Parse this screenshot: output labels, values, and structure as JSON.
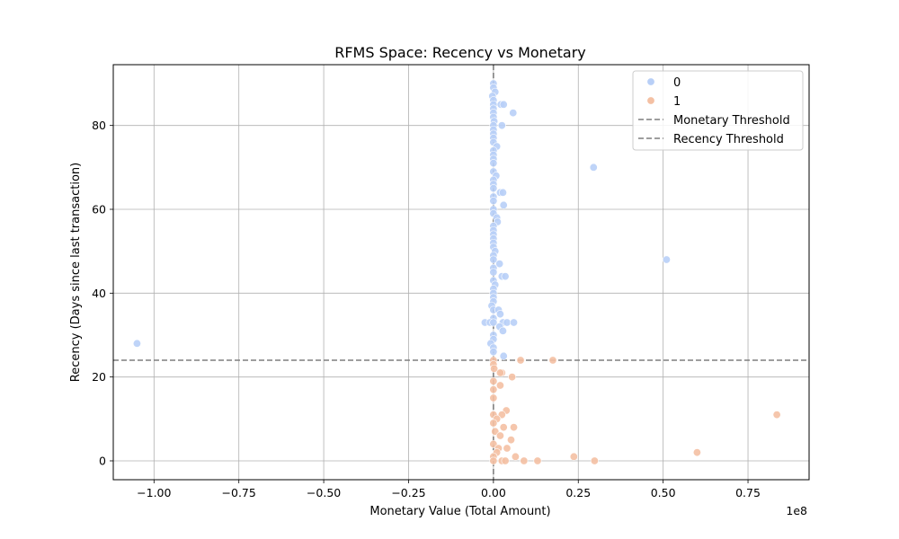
{
  "chart_data": {
    "type": "scatter",
    "title": "RFMS Space: Recency vs Monetary",
    "xlabel": "Monetary Value (Total Amount)",
    "ylabel": "Recency (Days since last transaction)",
    "x_offset_label": "1e8",
    "xlim": [
      -1.12,
      0.93
    ],
    "ylim": [
      -4.5,
      94.5
    ],
    "x_scale_multiplier": 100000000,
    "xticks": [
      -1.0,
      -0.75,
      -0.5,
      -0.25,
      0.0,
      0.25,
      0.5,
      0.75
    ],
    "xtick_labels": [
      "−1.00",
      "−0.75",
      "−0.50",
      "−0.25",
      "0.00",
      "0.25",
      "0.50",
      "0.75"
    ],
    "yticks": [
      0,
      20,
      40,
      60,
      80
    ],
    "ytick_labels": [
      "0",
      "20",
      "40",
      "60",
      "80"
    ],
    "grid": true,
    "legend_position": "top-right",
    "thresholds": {
      "monetary": {
        "label": "Monetary Threshold",
        "x": 0.0
      },
      "recency": {
        "label": "Recency Threshold",
        "y": 24
      }
    },
    "series": [
      {
        "name": "0",
        "color": "#b8cff7",
        "points": [
          [
            0.0,
            90
          ],
          [
            0.0,
            89
          ],
          [
            0.005,
            88
          ],
          [
            -0.003,
            87
          ],
          [
            0.0,
            86
          ],
          [
            0.0,
            85
          ],
          [
            0.022,
            85
          ],
          [
            0.03,
            85
          ],
          [
            0.0,
            84
          ],
          [
            0.0,
            83
          ],
          [
            0.058,
            83
          ],
          [
            0.0,
            82
          ],
          [
            0.002,
            81
          ],
          [
            0.0,
            80
          ],
          [
            0.025,
            80
          ],
          [
            0.0,
            79
          ],
          [
            0.0,
            78
          ],
          [
            0.0,
            77
          ],
          [
            0.0,
            76
          ],
          [
            0.01,
            75
          ],
          [
            0.0,
            74
          ],
          [
            0.0,
            73
          ],
          [
            0.0,
            72
          ],
          [
            0.0,
            71
          ],
          [
            0.295,
            70
          ],
          [
            0.0,
            69
          ],
          [
            0.008,
            68
          ],
          [
            0.0,
            67
          ],
          [
            0.0,
            66
          ],
          [
            0.0,
            65
          ],
          [
            0.02,
            64
          ],
          [
            0.028,
            64
          ],
          [
            0.0,
            63
          ],
          [
            0.0,
            62
          ],
          [
            0.03,
            61
          ],
          [
            0.0,
            60
          ],
          [
            0.0,
            59
          ],
          [
            0.01,
            58
          ],
          [
            0.012,
            57
          ],
          [
            0.0,
            56
          ],
          [
            0.0,
            55
          ],
          [
            0.0,
            54
          ],
          [
            0.0,
            53
          ],
          [
            0.0,
            52
          ],
          [
            0.0,
            51
          ],
          [
            0.005,
            50
          ],
          [
            0.0,
            49
          ],
          [
            0.51,
            48
          ],
          [
            0.0,
            48
          ],
          [
            0.018,
            47
          ],
          [
            0.0,
            46
          ],
          [
            0.0,
            45
          ],
          [
            0.025,
            44
          ],
          [
            0.035,
            44
          ],
          [
            0.0,
            43
          ],
          [
            0.005,
            42
          ],
          [
            0.0,
            41
          ],
          [
            0.0,
            40
          ],
          [
            0.0,
            39
          ],
          [
            0.0,
            38
          ],
          [
            -0.005,
            37
          ],
          [
            0.0,
            36
          ],
          [
            0.015,
            36
          ],
          [
            0.02,
            35
          ],
          [
            0.0,
            34
          ],
          [
            -0.025,
            33
          ],
          [
            -0.01,
            33
          ],
          [
            0.0,
            33
          ],
          [
            0.028,
            33
          ],
          [
            0.04,
            33
          ],
          [
            0.06,
            33
          ],
          [
            0.018,
            32
          ],
          [
            0.028,
            31
          ],
          [
            0.0,
            30
          ],
          [
            0.0,
            29
          ],
          [
            -0.008,
            28
          ],
          [
            0.0,
            27
          ],
          [
            0.0,
            26
          ],
          [
            0.03,
            25
          ],
          [
            -1.05,
            28
          ]
        ]
      },
      {
        "name": "1",
        "color": "#f4c0a3",
        "points": [
          [
            0.0,
            24
          ],
          [
            0.08,
            24
          ],
          [
            0.175,
            24
          ],
          [
            0.0,
            23
          ],
          [
            0.002,
            22
          ],
          [
            0.025,
            21
          ],
          [
            0.02,
            21
          ],
          [
            0.055,
            20
          ],
          [
            0.0,
            19
          ],
          [
            0.02,
            18
          ],
          [
            0.0,
            17
          ],
          [
            0.0,
            15
          ],
          [
            0.038,
            12
          ],
          [
            0.0,
            11
          ],
          [
            0.025,
            11
          ],
          [
            0.835,
            11
          ],
          [
            0.01,
            10
          ],
          [
            0.0,
            9
          ],
          [
            0.03,
            8
          ],
          [
            0.06,
            8
          ],
          [
            0.005,
            7
          ],
          [
            0.02,
            6
          ],
          [
            0.052,
            5
          ],
          [
            0.0,
            4
          ],
          [
            0.015,
            3
          ],
          [
            0.04,
            3
          ],
          [
            0.01,
            2
          ],
          [
            0.6,
            2
          ],
          [
            0.0,
            1
          ],
          [
            0.065,
            1
          ],
          [
            0.237,
            1
          ],
          [
            0.0,
            0
          ],
          [
            0.025,
            0
          ],
          [
            0.035,
            0
          ],
          [
            0.09,
            0
          ],
          [
            0.13,
            0
          ],
          [
            0.298,
            0
          ]
        ]
      }
    ]
  }
}
